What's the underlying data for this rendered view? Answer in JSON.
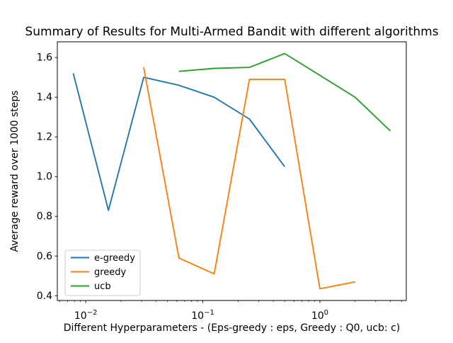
{
  "chart_data": {
    "type": "line",
    "title": "Summary of Results for Multi-Armed Bandit with different algorithms",
    "xlabel": "Different Hyperparameters - (Eps-greedy : eps, Greedy : Q0, ucb: c)",
    "ylabel": "Average reward over 1000 steps",
    "x_scale": "log",
    "grid": false,
    "xlim_log10": [
      -2.243,
      0.738
    ],
    "ylim": [
      0.376,
      1.679
    ],
    "y_ticks": [
      0.4,
      0.6,
      0.8,
      1.0,
      1.2,
      1.4,
      1.6
    ],
    "x_major_tick_exponents": [
      -2,
      -1,
      0
    ],
    "x_major_tick_labels": [
      "10⁻²",
      "10⁻¹",
      "10⁰"
    ],
    "legend": {
      "position": "lower left",
      "entries": [
        "e-greedy",
        "greedy",
        "ucb"
      ]
    },
    "series": [
      {
        "name": "e-greedy",
        "color": "#1f77b4",
        "x": [
          0.0078125,
          0.015625,
          0.03125,
          0.0625,
          0.125,
          0.25,
          0.5
        ],
        "y": [
          1.52,
          0.83,
          1.5,
          1.46,
          1.4,
          1.29,
          1.05
        ]
      },
      {
        "name": "greedy",
        "color": "#ff7f0e",
        "x": [
          0.03125,
          0.0625,
          0.125,
          0.25,
          0.5,
          1.0,
          2.0
        ],
        "y": [
          1.55,
          0.59,
          0.51,
          1.49,
          1.49,
          0.435,
          0.47
        ]
      },
      {
        "name": "ucb",
        "color": "#2ca02c",
        "x": [
          0.0625,
          0.125,
          0.25,
          0.5,
          1.0,
          2.0,
          4.0
        ],
        "y": [
          1.53,
          1.545,
          1.55,
          1.62,
          1.51,
          1.4,
          1.23
        ]
      }
    ]
  }
}
